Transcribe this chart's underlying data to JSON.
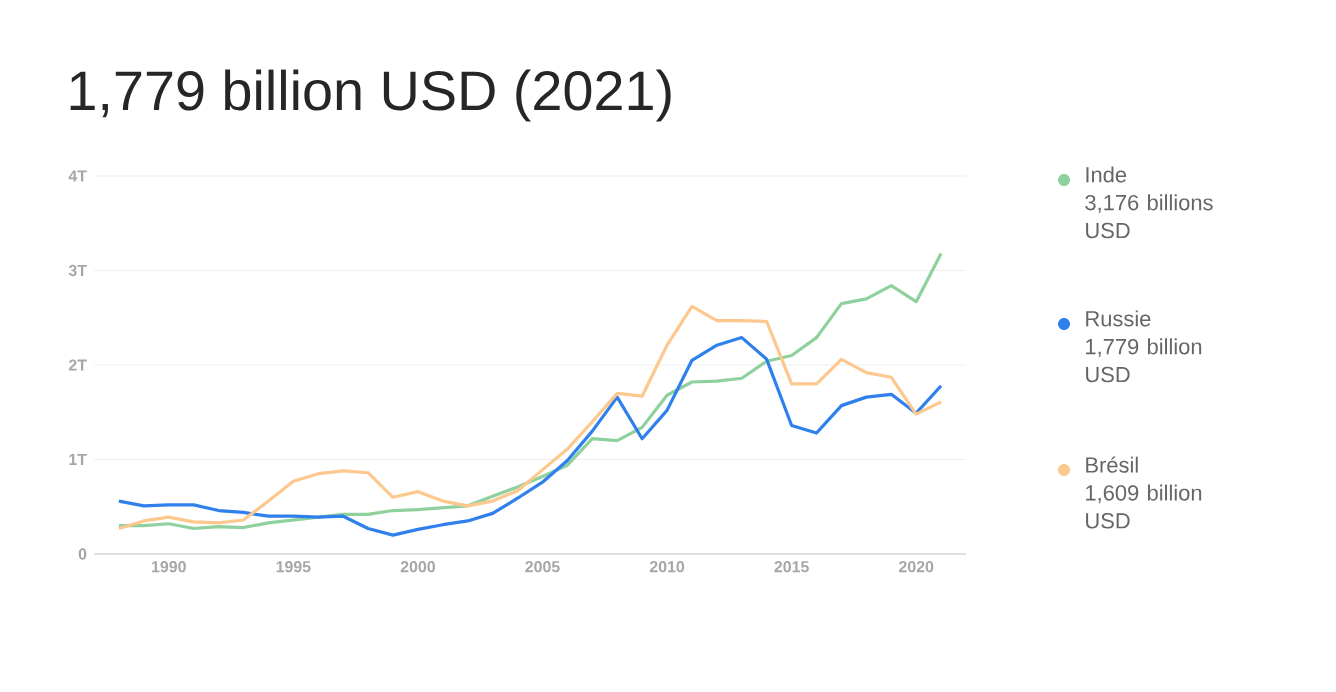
{
  "chart_data": {
    "type": "line",
    "title": "1,779 billion USD (2021)",
    "x": [
      1988,
      1989,
      1990,
      1991,
      1992,
      1993,
      1994,
      1995,
      1996,
      1997,
      1998,
      1999,
      2000,
      2001,
      2002,
      2003,
      2004,
      2005,
      2006,
      2007,
      2008,
      2009,
      2010,
      2011,
      2012,
      2013,
      2014,
      2015,
      2016,
      2017,
      2018,
      2019,
      2020,
      2021
    ],
    "series": [
      {
        "name": "Inde",
        "color": "#8fd19e",
        "values": [
          0.3,
          0.3,
          0.32,
          0.27,
          0.29,
          0.28,
          0.33,
          0.36,
          0.39,
          0.42,
          0.42,
          0.46,
          0.47,
          0.49,
          0.51,
          0.61,
          0.71,
          0.82,
          0.94,
          1.22,
          1.2,
          1.34,
          1.68,
          1.82,
          1.83,
          1.86,
          2.04,
          2.1,
          2.29,
          2.65,
          2.7,
          2.84,
          2.67,
          3.18
        ]
      },
      {
        "name": "Russie",
        "color": "#2f80ed",
        "values": [
          0.56,
          0.51,
          0.52,
          0.52,
          0.46,
          0.44,
          0.4,
          0.4,
          0.39,
          0.4,
          0.27,
          0.2,
          0.26,
          0.31,
          0.35,
          0.43,
          0.59,
          0.76,
          0.99,
          1.3,
          1.66,
          1.22,
          1.52,
          2.05,
          2.21,
          2.29,
          2.06,
          1.36,
          1.28,
          1.57,
          1.66,
          1.69,
          1.49,
          1.78
        ]
      },
      {
        "name": "Brésil",
        "color": "#fcc88e",
        "values": [
          0.27,
          0.35,
          0.39,
          0.34,
          0.33,
          0.36,
          0.56,
          0.77,
          0.85,
          0.88,
          0.86,
          0.6,
          0.66,
          0.56,
          0.51,
          0.56,
          0.67,
          0.89,
          1.11,
          1.4,
          1.7,
          1.67,
          2.21,
          2.62,
          2.47,
          2.47,
          2.46,
          1.8,
          1.8,
          2.06,
          1.92,
          1.87,
          1.48,
          1.61
        ]
      }
    ],
    "annotations": [
      "3,176 billions USD",
      "1,779 billion USD",
      "1,609 billion USD"
    ],
    "xlim": [
      1987,
      2022
    ],
    "ylim": [
      0,
      4
    ],
    "xticks": [
      1990,
      1995,
      2000,
      2005,
      2010,
      2015,
      2020
    ],
    "yticks": [
      0,
      {
        "value": 1,
        "label": "1T"
      },
      {
        "value": 2,
        "label": "2T"
      },
      {
        "value": 3,
        "label": "3T"
      },
      {
        "value": 4,
        "label": "4T"
      }
    ],
    "grid": "y",
    "legend": "right",
    "line_style": "solid"
  }
}
